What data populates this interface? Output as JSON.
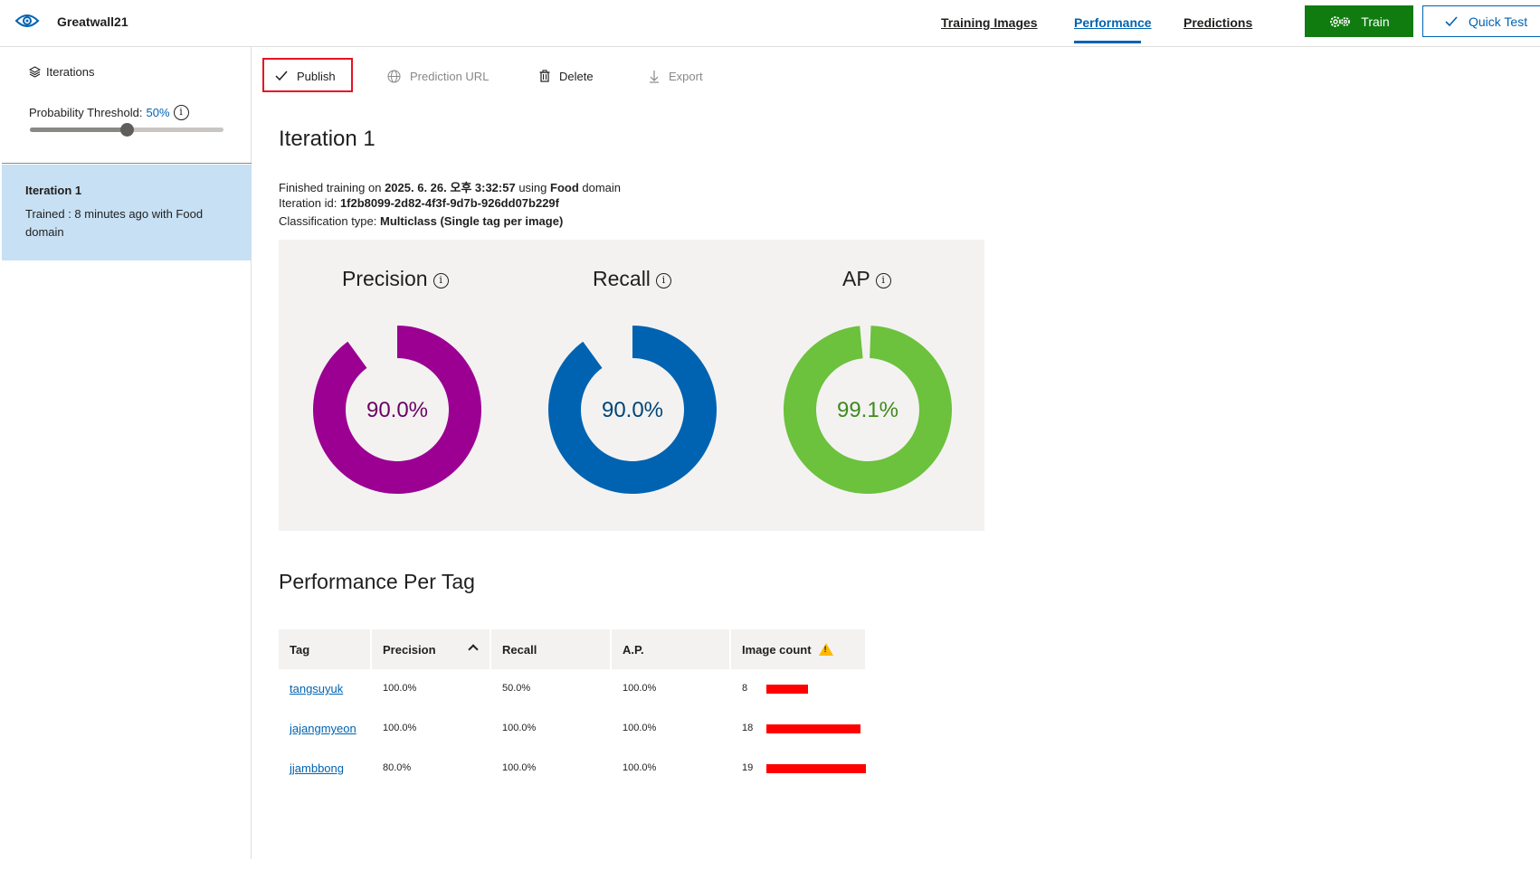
{
  "header": {
    "project_name": "Greatwall21",
    "tabs": [
      {
        "label": "Training Images",
        "active": false
      },
      {
        "label": "Performance",
        "active": true
      },
      {
        "label": "Predictions",
        "active": false
      }
    ],
    "train_label": "Train",
    "quick_test_label": "Quick Test",
    "accent_color": "#0063b1",
    "train_color": "#107c10"
  },
  "sidebar": {
    "iterations_label": "Iterations",
    "threshold_label": "Probability Threshold:",
    "threshold_value": "50%",
    "threshold_fraction": 0.5,
    "iteration": {
      "title": "Iteration 1",
      "description": "Trained : 8 minutes ago with Food domain"
    }
  },
  "toolbar": {
    "publish": "Publish",
    "prediction_url": "Prediction URL",
    "delete": "Delete",
    "export": "Export"
  },
  "main": {
    "title": "Iteration 1",
    "finished_prefix": "Finished training on ",
    "finished_date": "2025. 6. 26. 오후 3:32:57",
    "finished_mid": " using ",
    "finished_domain": "Food",
    "finished_suffix": " domain",
    "iteration_id_prefix": "Iteration id: ",
    "iteration_id": "1f2b8099-2d82-4f3f-9d7b-926dd07b229f",
    "classification_prefix": "Classification type: ",
    "classification_type": "Multiclass (Single tag per image)"
  },
  "metrics": [
    {
      "name": "Precision",
      "value": "90.0%",
      "fraction": 0.9,
      "color": "#9b0092",
      "text_color": "#6b0063"
    },
    {
      "name": "Recall",
      "value": "90.0%",
      "fraction": 0.9,
      "color": "#0063b1",
      "text_color": "#004578"
    },
    {
      "name": "AP",
      "value": "99.1%",
      "fraction": 0.991,
      "color": "#6cc13d",
      "text_color": "#3f8a1e"
    }
  ],
  "per_tag": {
    "title": "Performance Per Tag",
    "columns": [
      "Tag",
      "Precision",
      "Recall",
      "A.P.",
      "Image count"
    ],
    "rows": [
      {
        "tag": "tangsuyuk",
        "precision": "100.0%",
        "recall": "50.0%",
        "ap": "100.0%",
        "count": "8",
        "count_value": 8
      },
      {
        "tag": "jajangmyeon",
        "precision": "100.0%",
        "recall": "100.0%",
        "ap": "100.0%",
        "count": "18",
        "count_value": 18
      },
      {
        "tag": "jjambbong",
        "precision": "80.0%",
        "recall": "100.0%",
        "ap": "100.0%",
        "count": "19",
        "count_value": 19
      }
    ]
  }
}
